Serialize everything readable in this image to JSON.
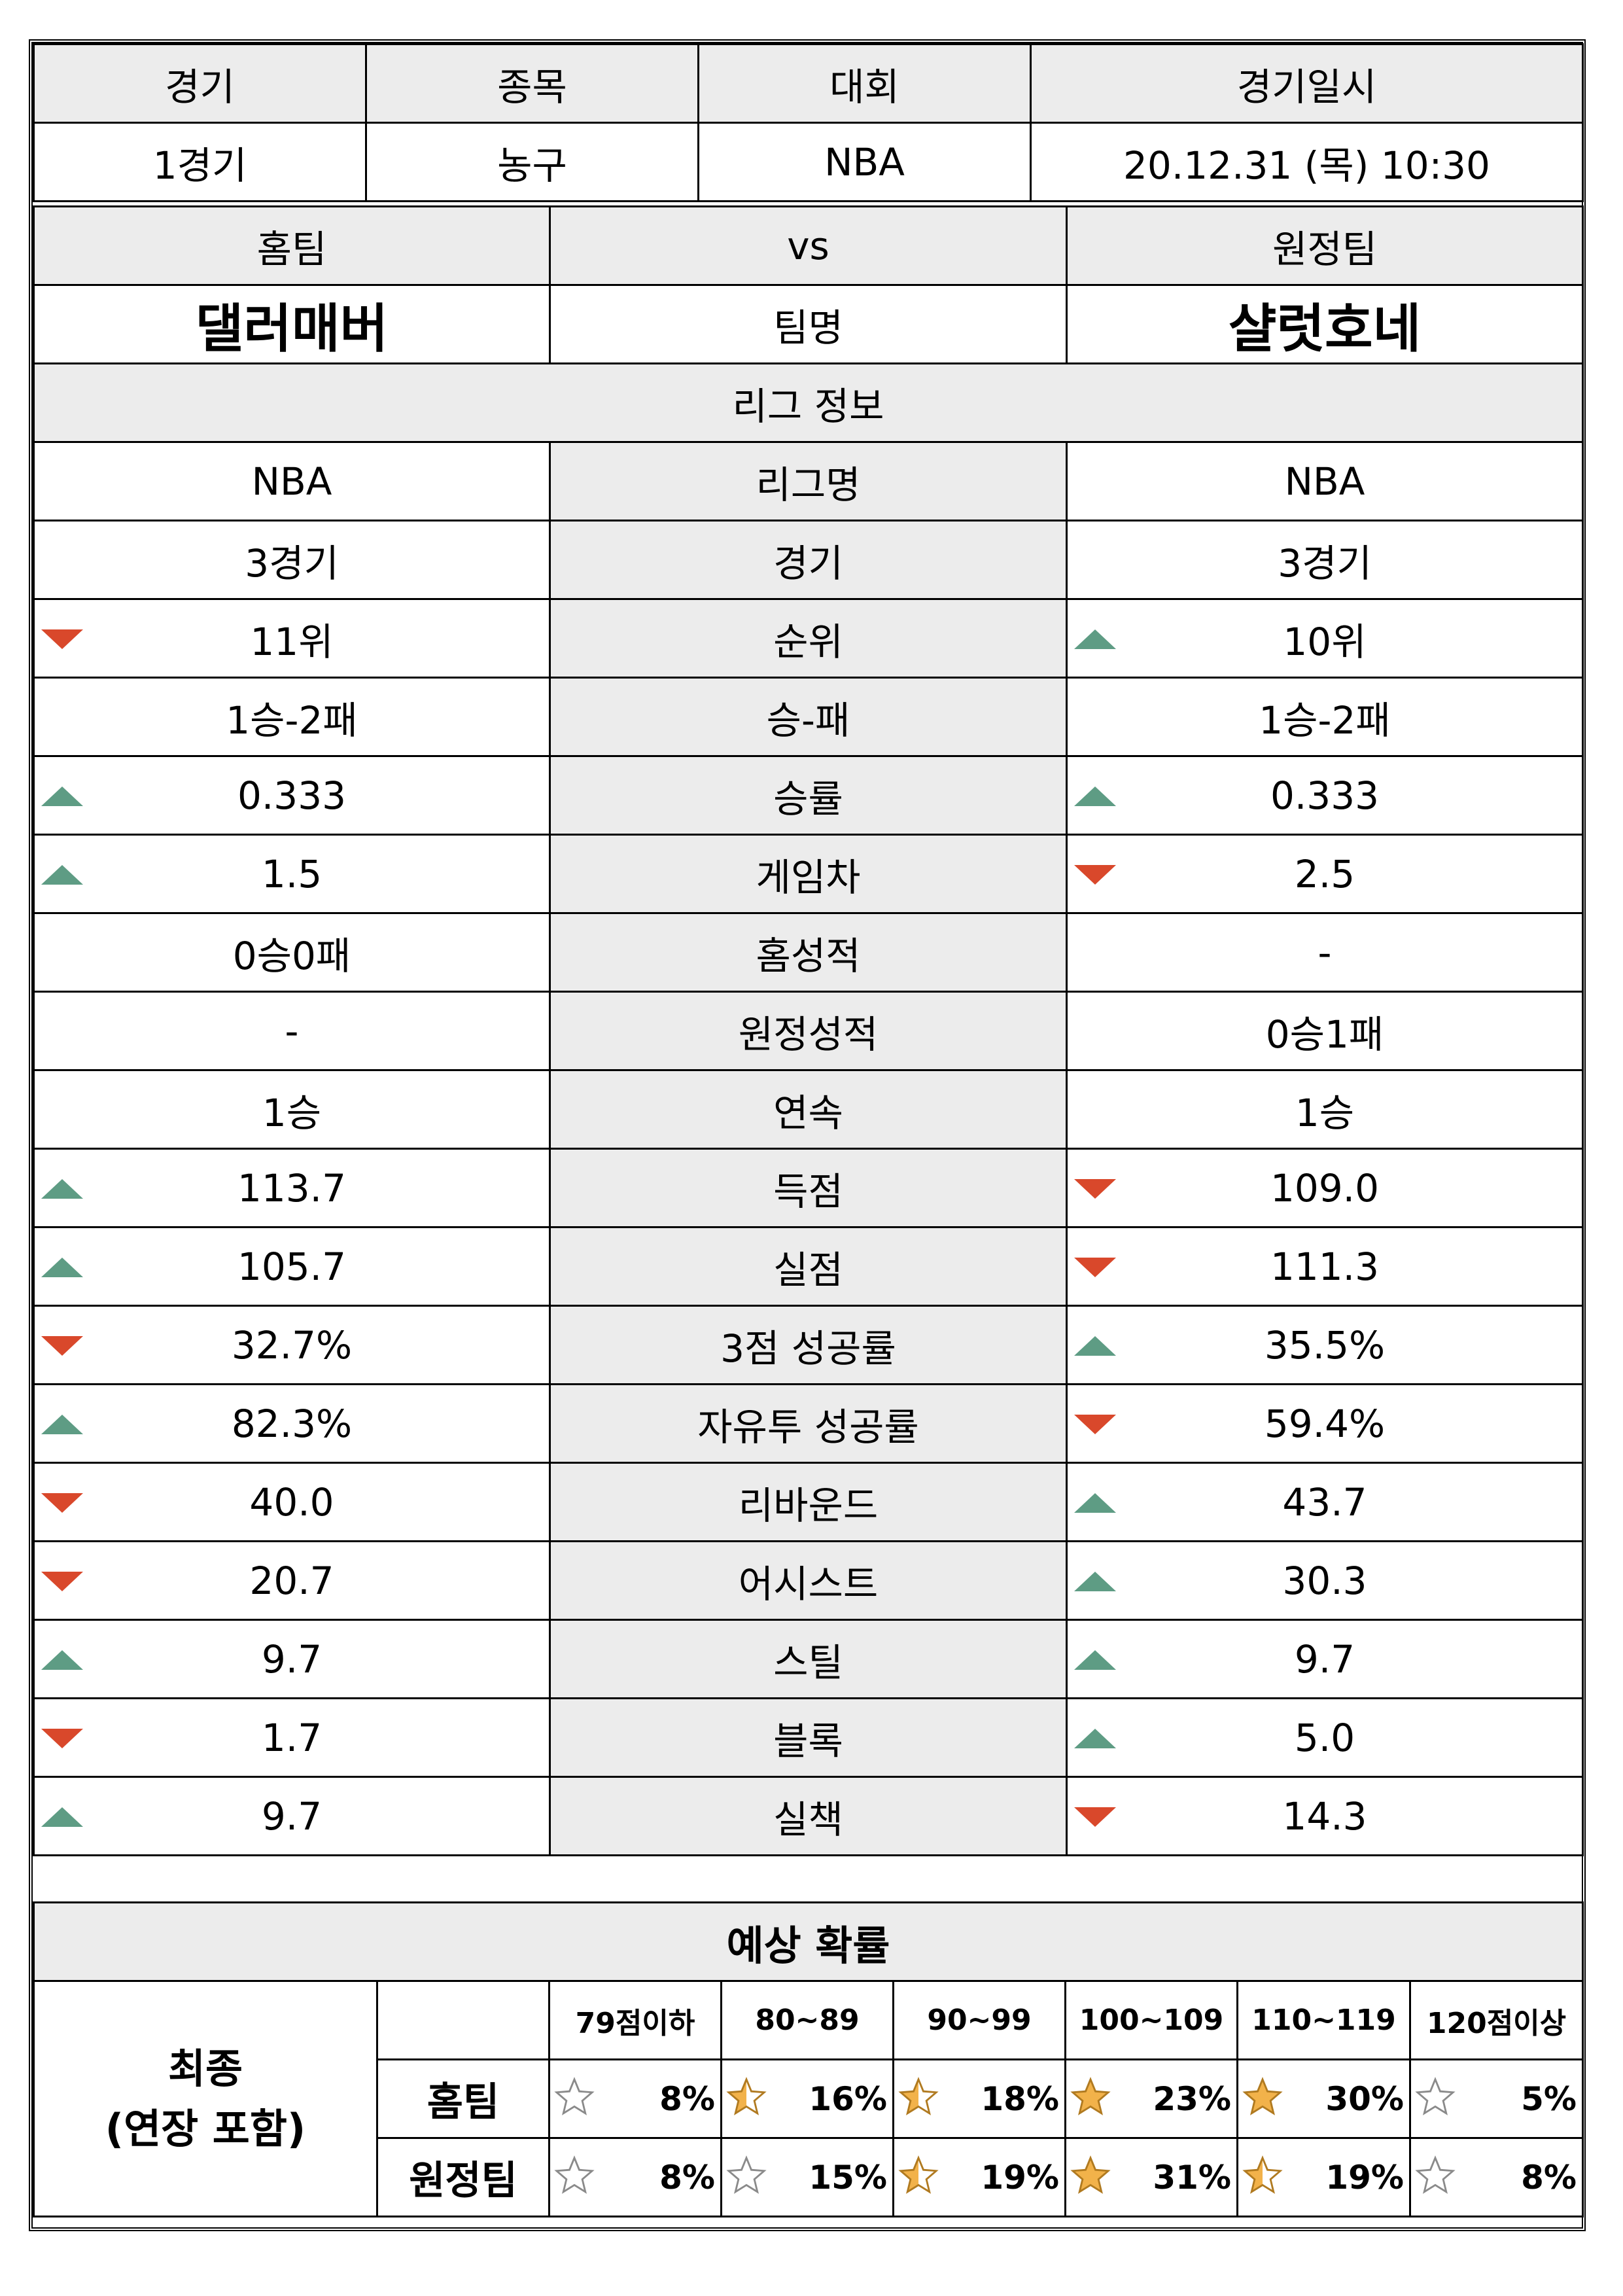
{
  "match_header": {
    "labels": [
      "경기",
      "종목",
      "대회",
      "경기일시"
    ],
    "values": [
      "1경기",
      "농구",
      "NBA",
      "20.12.31 (목) 10:30"
    ]
  },
  "teams": {
    "home_label": "홈팀",
    "vs_label": "vs",
    "away_label": "원정팀",
    "home_name": "댈러매버",
    "name_label": "팀명",
    "away_name": "샬럿호네"
  },
  "league": {
    "title": "리그 정보",
    "rows": [
      {
        "label": "리그명",
        "home": "NBA",
        "away": "NBA",
        "home_trend": "",
        "away_trend": ""
      },
      {
        "label": "경기",
        "home": "3경기",
        "away": "3경기",
        "home_trend": "",
        "away_trend": ""
      },
      {
        "label": "순위",
        "home": "11위",
        "away": "10위",
        "home_trend": "down",
        "away_trend": "up"
      },
      {
        "label": "승-패",
        "home": "1승-2패",
        "away": "1승-2패",
        "home_trend": "",
        "away_trend": ""
      },
      {
        "label": "승률",
        "home": "0.333",
        "away": "0.333",
        "home_trend": "up",
        "away_trend": "up"
      },
      {
        "label": "게임차",
        "home": "1.5",
        "away": "2.5",
        "home_trend": "up",
        "away_trend": "down"
      },
      {
        "label": "홈성적",
        "home": "0승0패",
        "away": "-",
        "home_trend": "",
        "away_trend": ""
      },
      {
        "label": "원정성적",
        "home": "-",
        "away": "0승1패",
        "home_trend": "",
        "away_trend": ""
      },
      {
        "label": "연속",
        "home": "1승",
        "away": "1승",
        "home_trend": "",
        "away_trend": ""
      },
      {
        "label": "득점",
        "home": "113.7",
        "away": "109.0",
        "home_trend": "up",
        "away_trend": "down"
      },
      {
        "label": "실점",
        "home": "105.7",
        "away": "111.3",
        "home_trend": "up",
        "away_trend": "down"
      },
      {
        "label": "3점 성공률",
        "home": "32.7%",
        "away": "35.5%",
        "home_trend": "down",
        "away_trend": "up"
      },
      {
        "label": "자유투 성공률",
        "home": "82.3%",
        "away": "59.4%",
        "home_trend": "up",
        "away_trend": "down"
      },
      {
        "label": "리바운드",
        "home": "40.0",
        "away": "43.7",
        "home_trend": "down",
        "away_trend": "up"
      },
      {
        "label": "어시스트",
        "home": "20.7",
        "away": "30.3",
        "home_trend": "down",
        "away_trend": "up"
      },
      {
        "label": "스틸",
        "home": "9.7",
        "away": "9.7",
        "home_trend": "up",
        "away_trend": "up"
      },
      {
        "label": "블록",
        "home": "1.7",
        "away": "5.0",
        "home_trend": "down",
        "away_trend": "up"
      },
      {
        "label": "실책",
        "home": "9.7",
        "away": "14.3",
        "home_trend": "up",
        "away_trend": "down"
      }
    ]
  },
  "prediction": {
    "title": "예상 확률",
    "final_label": "최종\n(연장 포함)",
    "buckets": [
      "79점이하",
      "80~89",
      "90~99",
      "100~109",
      "110~119",
      "120점이상"
    ],
    "rows": [
      {
        "label": "홈팀",
        "values": [
          "8%",
          "16%",
          "18%",
          "23%",
          "30%",
          "5%"
        ],
        "stars": [
          0,
          0.5,
          0.5,
          1,
          1,
          0
        ]
      },
      {
        "label": "원정팀",
        "values": [
          "8%",
          "15%",
          "19%",
          "31%",
          "19%",
          "8%"
        ],
        "stars": [
          0,
          0,
          0.5,
          1,
          0.5,
          0
        ]
      }
    ],
    "star_color": "#f2b24a",
    "star_outline": "#8a8a8a"
  },
  "colors": {
    "up": "#5e9c84",
    "down": "#d9482b",
    "header_bg": "#ececec"
  }
}
